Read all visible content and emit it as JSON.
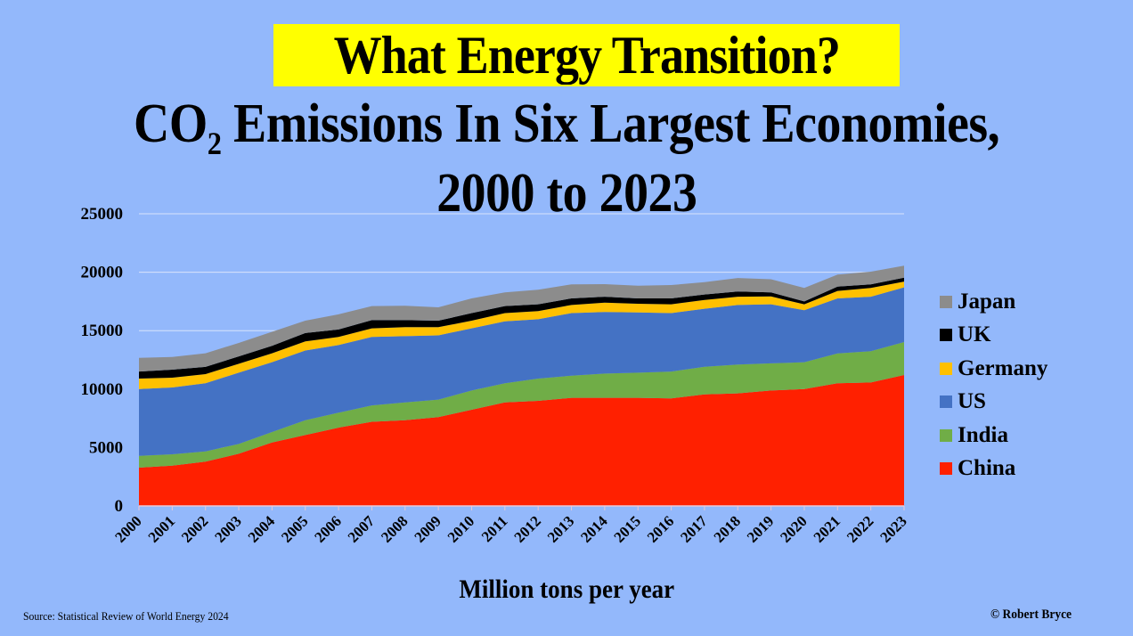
{
  "header": {
    "banner": "What Energy Transition?",
    "subtitle_line1_prefix": "CO",
    "subtitle_line1_subscript": "2",
    "subtitle_line1_suffix": " Emissions In Six Largest Economies,",
    "subtitle_line2": "2000 to 2023"
  },
  "footer": {
    "source": "Source: Statistical Review of World Energy  2024",
    "credit": "© Robert Bryce"
  },
  "colors": {
    "background": "#93B8FB",
    "banner": "#FFFF00",
    "China": "#FF2000",
    "India": "#70AD47",
    "US": "#4472C4",
    "Germany": "#FFC000",
    "UK": "#000000",
    "Japan": "#8C8C8C",
    "gridline": "#D8E4FB"
  },
  "chart_data": {
    "type": "area",
    "stacked": true,
    "title": "CO2 Emissions In Six Largest Economies, 2000 to 2023",
    "xlabel": "Million tons per year",
    "ylabel": "",
    "ylim": [
      0,
      25000
    ],
    "yticks": [
      0,
      5000,
      10000,
      15000,
      20000,
      25000
    ],
    "grid": true,
    "legend_position": "right",
    "legend_order": [
      "Japan",
      "UK",
      "Germany",
      "US",
      "India",
      "China"
    ],
    "categories": [
      "2000",
      "2001",
      "2002",
      "2003",
      "2004",
      "2005",
      "2006",
      "2007",
      "2008",
      "2009",
      "2010",
      "2011",
      "2012",
      "2013",
      "2014",
      "2015",
      "2016",
      "2017",
      "2018",
      "2019",
      "2020",
      "2021",
      "2022",
      "2023"
    ],
    "series": [
      {
        "name": "China",
        "values": [
          3280,
          3450,
          3790,
          4470,
          5430,
          6070,
          6700,
          7200,
          7340,
          7600,
          8230,
          8860,
          8990,
          9250,
          9250,
          9250,
          9200,
          9550,
          9630,
          9880,
          10000,
          10500,
          10570,
          11200
        ]
      },
      {
        "name": "India",
        "values": [
          1010,
          970,
          880,
          840,
          900,
          1270,
          1280,
          1400,
          1520,
          1500,
          1650,
          1640,
          1910,
          1900,
          2080,
          2150,
          2300,
          2360,
          2470,
          2320,
          2300,
          2550,
          2670,
          2820
        ]
      },
      {
        "name": "US",
        "values": [
          5710,
          5720,
          5830,
          6090,
          5970,
          5960,
          5790,
          5860,
          5670,
          5500,
          5320,
          5300,
          5080,
          5350,
          5270,
          5160,
          5000,
          4960,
          5100,
          5050,
          4450,
          4710,
          4660,
          4680
        ]
      },
      {
        "name": "Germany",
        "values": [
          900,
          840,
          780,
          770,
          760,
          780,
          690,
          740,
          770,
          700,
          650,
          700,
          690,
          700,
          800,
          740,
          750,
          760,
          700,
          680,
          500,
          640,
          750,
          500
        ]
      },
      {
        "name": "UK",
        "values": [
          600,
          680,
          620,
          630,
          640,
          720,
          640,
          700,
          600,
          550,
          650,
          600,
          580,
          560,
          500,
          460,
          510,
          460,
          450,
          340,
          250,
          370,
          310,
          330
        ]
      },
      {
        "name": "Japan",
        "values": [
          1170,
          1090,
          1160,
          1150,
          1200,
          1050,
          1300,
          1200,
          1230,
          1150,
          1260,
          1170,
          1250,
          1200,
          1080,
          1090,
          1140,
          1060,
          1150,
          1130,
          1150,
          1030,
          1090,
          1030
        ]
      }
    ]
  }
}
